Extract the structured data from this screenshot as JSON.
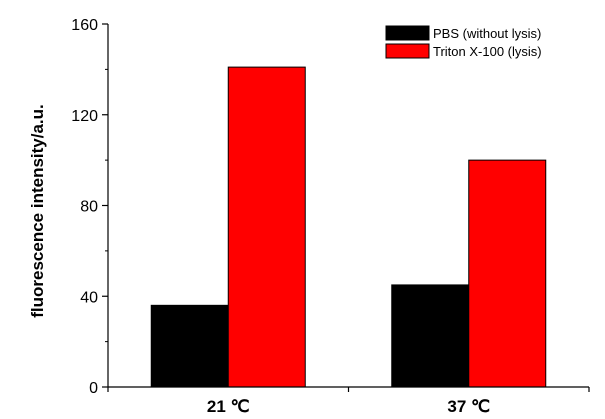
{
  "chart_data": {
    "type": "bar",
    "title": "",
    "xlabel": "",
    "ylabel": "fluorescence intensity/a.u.",
    "categories": [
      "21 ℃",
      "37 ℃"
    ],
    "series": [
      {
        "name": "PBS (without lysis)",
        "color": "#000000",
        "values": [
          36,
          45
        ]
      },
      {
        "name": "Triton X-100 (lysis)",
        "color": "#ff0000",
        "values": [
          141,
          100
        ]
      }
    ],
    "ylim": [
      0,
      160
    ],
    "yticks": [
      0,
      40,
      80,
      120,
      160
    ],
    "grid": false,
    "legend_position": "top-right"
  }
}
